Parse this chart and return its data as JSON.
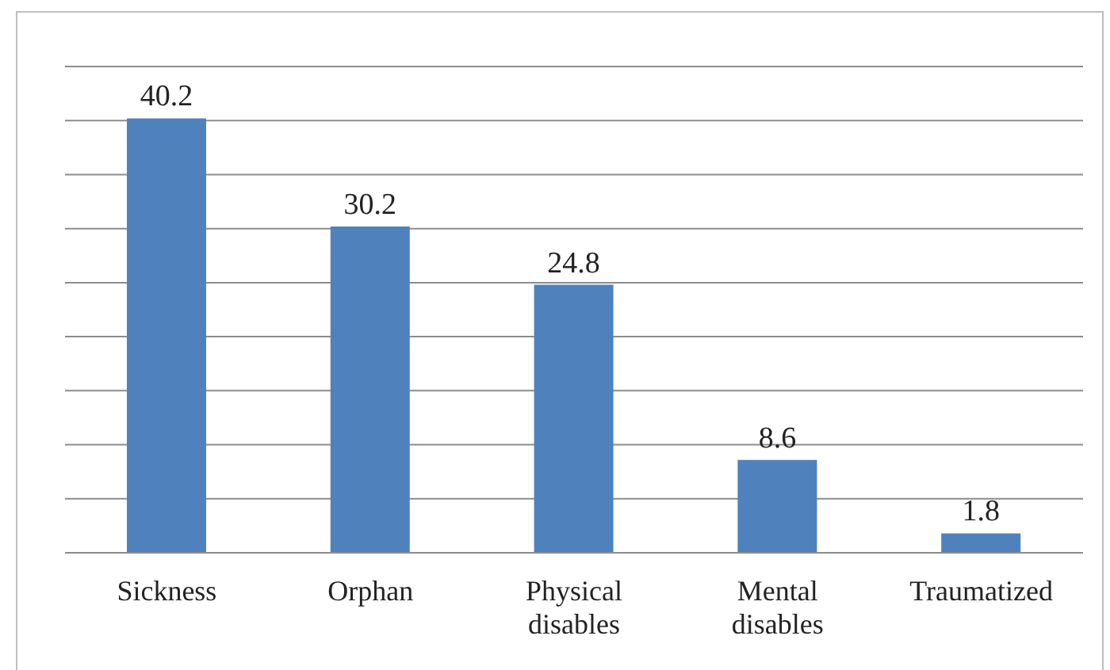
{
  "chart_data": {
    "type": "bar",
    "categories": [
      "Sickness",
      "Orphan",
      "Physical disables",
      "Mental disables",
      "Traumatized"
    ],
    "values": [
      40.2,
      30.2,
      24.8,
      8.6,
      1.8
    ],
    "color": "#4f81bd",
    "ylim": [
      0,
      45
    ],
    "yticks": [
      {
        "value": 0,
        "label": null
      },
      {
        "value": 5,
        "label": null
      },
      {
        "value": 10,
        "label": null
      },
      {
        "value": 15,
        "label": null
      },
      {
        "value": 20,
        "label": null
      },
      {
        "value": 25,
        "label": null
      },
      {
        "value": 30,
        "label": null
      },
      {
        "value": 35,
        "label": null
      },
      {
        "value": 40,
        "label": null
      },
      {
        "value": 45,
        "label": null
      }
    ],
    "grid": "y",
    "tick_labels": "x",
    "data_labels": true
  }
}
